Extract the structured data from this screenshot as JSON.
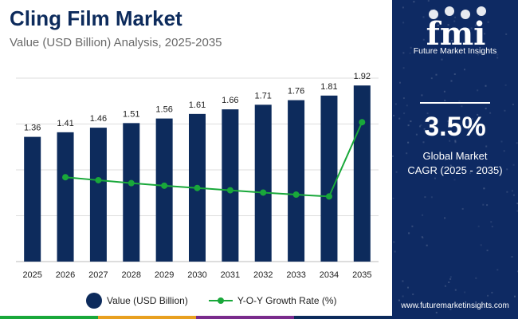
{
  "header": {
    "title": "Cling Film Market",
    "subtitle": "Value (USD Billion) Analysis, 2025-2035"
  },
  "sidebar": {
    "logo_text": "fmi",
    "brand": "Future Market Insights",
    "cagr_value": "3.5%",
    "cagr_label_line1": "Global Market",
    "cagr_label_line2": "CAGR (2025 - 2035)",
    "website": "www.futuremarketinsights.com"
  },
  "legend": {
    "bar_label": "Value (USD Billion)",
    "line_label": "Y-O-Y Growth Rate (%)"
  },
  "colors": {
    "bar": "#0d2b5c",
    "line": "#19a83a",
    "sidebar": "#0e2a63",
    "bottom_bar": [
      "#19a83a",
      "#e8a020",
      "#7a2b8c",
      "#0d2b5c"
    ]
  },
  "chart_data": {
    "type": "bar",
    "title": "Cling Film Market",
    "subtitle": "Value (USD Billion) Analysis, 2025-2035",
    "categories": [
      "2025",
      "2026",
      "2027",
      "2028",
      "2029",
      "2030",
      "2031",
      "2032",
      "2033",
      "2034",
      "2035"
    ],
    "series": [
      {
        "name": "Value (USD Billion)",
        "type": "bar",
        "values": [
          1.36,
          1.41,
          1.46,
          1.51,
          1.56,
          1.61,
          1.66,
          1.71,
          1.76,
          1.81,
          1.92
        ],
        "labels": [
          "1.36",
          "1.41",
          "1.46",
          "1.51",
          "1.56",
          "1.61",
          "1.66",
          "1.71",
          "1.76",
          "1.81",
          "1.92"
        ]
      },
      {
        "name": "Y-O-Y Growth Rate (%)",
        "type": "line",
        "values": [
          null,
          3.68,
          3.55,
          3.42,
          3.31,
          3.21,
          3.11,
          3.01,
          2.92,
          2.84,
          6.08
        ]
      }
    ],
    "ylim": [
      0,
      2.0
    ],
    "y2lim": [
      0,
      8
    ],
    "grid": true,
    "legend": "bottom"
  }
}
